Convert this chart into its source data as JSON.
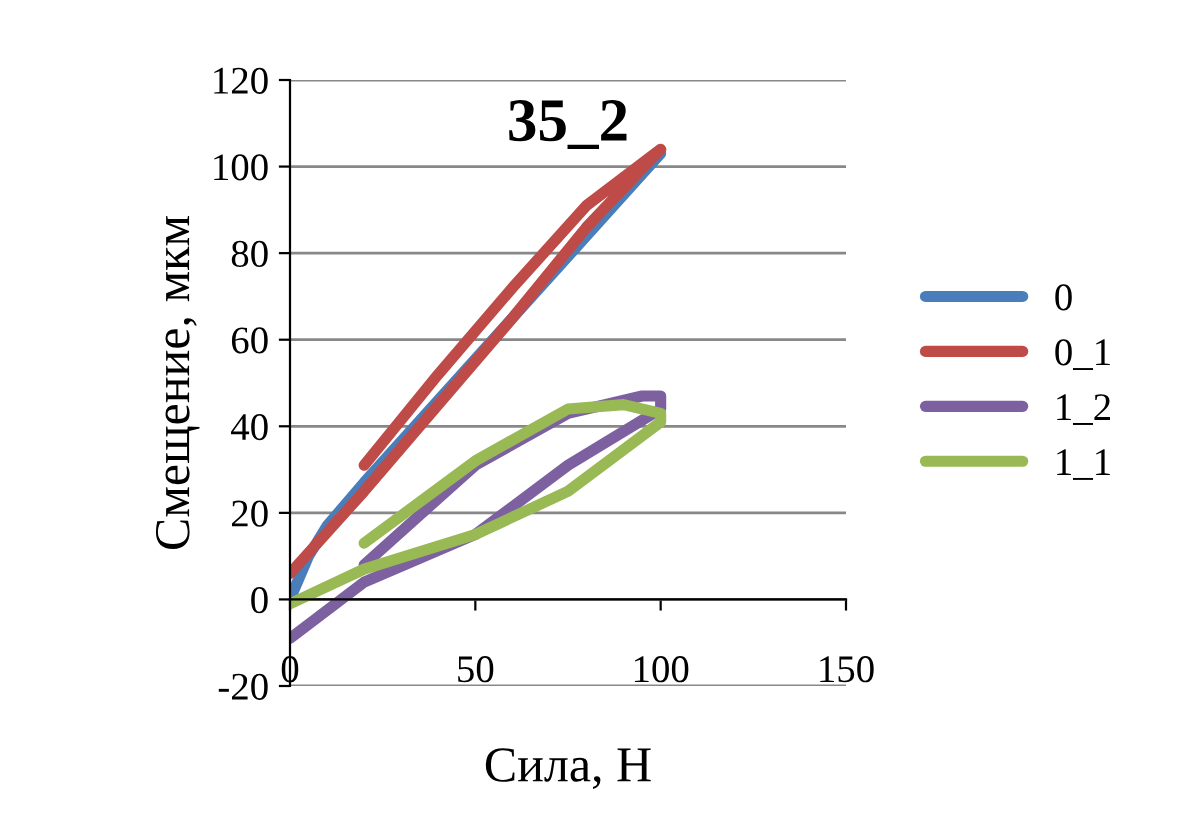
{
  "chart_data": {
    "type": "line",
    "title": "35_2",
    "xlabel": "Сила, Н",
    "ylabel": "Смещение, мкм",
    "xlim": [
      0,
      150
    ],
    "xticks": [
      0,
      50,
      100,
      150
    ],
    "ylim": [
      -20,
      120
    ],
    "yticks": [
      -20,
      0,
      20,
      40,
      60,
      80,
      100,
      120
    ],
    "grid": "y",
    "legend": "right",
    "marker": "none",
    "line_style": "solid",
    "series": [
      {
        "name": "0",
        "color": "#4a7ebb",
        "x": [
          0,
          5,
          10,
          20,
          40,
          60,
          80,
          100
        ],
        "values": [
          0,
          10,
          17,
          27,
          46,
          65,
          84,
          103
        ]
      },
      {
        "name": "0_1",
        "color": "#be4b48",
        "x": [
          20,
          40,
          60,
          80,
          100,
          80,
          60,
          40,
          20,
          0
        ],
        "values": [
          31,
          52,
          72,
          91,
          104,
          86,
          65,
          45,
          25,
          6
        ]
      },
      {
        "name": "1_2",
        "color": "#7d60a0",
        "x": [
          20,
          50,
          75,
          95,
          100,
          100,
          75,
          50,
          20,
          0
        ],
        "values": [
          8,
          31,
          43,
          47,
          47,
          44,
          31,
          15,
          4,
          -9
        ]
      },
      {
        "name": "1_1",
        "color": "#98b954",
        "x": [
          20,
          50,
          75,
          90,
          100,
          100,
          75,
          50,
          20,
          0
        ],
        "values": [
          13,
          32,
          44,
          45,
          43,
          41,
          25,
          15,
          7,
          -1
        ]
      }
    ]
  }
}
